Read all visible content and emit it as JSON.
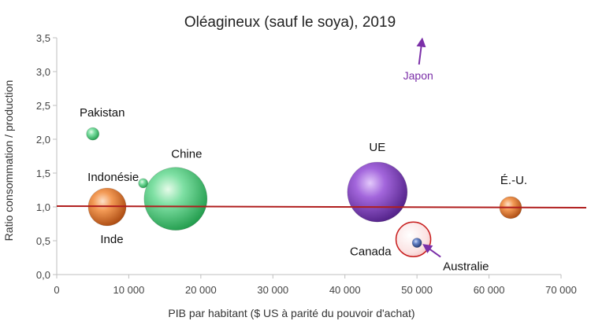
{
  "chart_data": {
    "type": "bubble",
    "title": "Oléagineux (sauf le soya), 2019",
    "xlabel": "PIB par habitant ($ US à parité du pouvoir d'achat)",
    "ylabel": "Ratio consommation / production",
    "xlim": [
      0,
      70000
    ],
    "ylim": [
      0,
      3.5
    ],
    "x_ticks": [
      0,
      10000,
      20000,
      30000,
      40000,
      50000,
      60000,
      70000
    ],
    "x_tick_labels": [
      "0",
      "10 000",
      "20 000",
      "30 000",
      "40 000",
      "50 000",
      "60 000",
      "70 000"
    ],
    "y_ticks": [
      0,
      0.5,
      1.0,
      1.5,
      2.0,
      2.5,
      3.0,
      3.5
    ],
    "y_tick_labels": [
      "0,0",
      "0,5",
      "1,0",
      "1,5",
      "2,0",
      "2,5",
      "3,0",
      "3,5"
    ],
    "reference_line": {
      "y": 1.0,
      "color": "#b01e1e"
    },
    "colors": {
      "green": "#1f9a4a",
      "orange": "#d0601a",
      "purple": "#7b35b8",
      "blue": "#3355a0",
      "canada": "#c81e1e",
      "japon": "#7b2fa8"
    },
    "bubbles": [
      {
        "label": "Pakistan",
        "x": 5000,
        "y": 2.08,
        "r": 8,
        "color": "green"
      },
      {
        "label": "Indonésie",
        "x": 12000,
        "y": 1.35,
        "r": 6,
        "color": "green"
      },
      {
        "label": "Inde",
        "x": 7000,
        "y": 1.0,
        "r": 24,
        "color": "orange"
      },
      {
        "label": "Chine",
        "x": 16500,
        "y": 1.12,
        "r": 40,
        "color": "green"
      },
      {
        "label": "UE",
        "x": 44500,
        "y": 1.22,
        "r": 38,
        "color": "purple"
      },
      {
        "label": "Canada",
        "x": 49500,
        "y": 0.52,
        "r": 22,
        "color": "canada",
        "hollow": true
      },
      {
        "label": "Australie",
        "x": 50000,
        "y": 0.47,
        "r": 6,
        "color": "blue"
      },
      {
        "label": "É.-U.",
        "x": 63000,
        "y": 0.99,
        "r": 14,
        "color": "orange"
      }
    ],
    "annotations": [
      {
        "label": "Japon",
        "note": "arrow pointing up, off scale",
        "x": 50500,
        "color": "japon"
      }
    ]
  }
}
